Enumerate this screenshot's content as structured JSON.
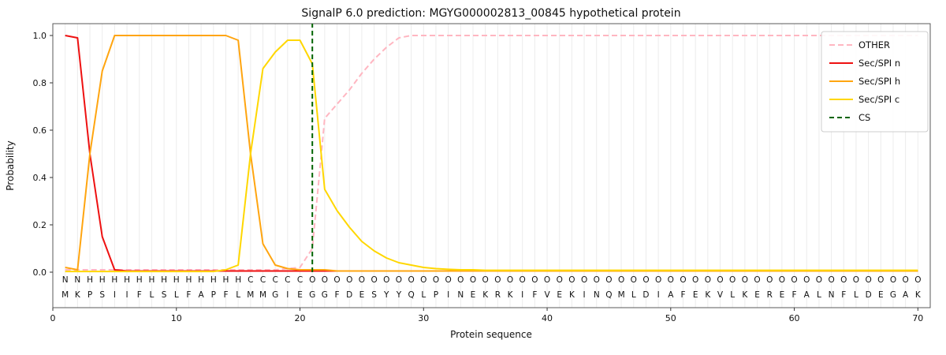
{
  "chart_data": {
    "type": "line",
    "title": "SignalP 6.0 prediction: MGYG000002813_00845 hypothetical protein",
    "xlabel": "Protein sequence",
    "ylabel": "Probability",
    "xlim": [
      0,
      71
    ],
    "ylim": [
      -0.15,
      1.05
    ],
    "xticks": [
      0,
      10,
      20,
      30,
      40,
      50,
      60,
      70
    ],
    "yticks": [
      0,
      0.2,
      0.4,
      0.6,
      0.8,
      1.0
    ],
    "ytick_labels": [
      "0.0",
      "0.2",
      "0.4",
      "0.6",
      "0.8",
      "1.0"
    ],
    "grid": "vertical line per residue",
    "legend_position": "upper right",
    "x_start": 1,
    "series": [
      {
        "name": "OTHER",
        "color": "#ffb6c1",
        "dash": "7 4",
        "values": [
          0.01,
          0.01,
          0.01,
          0.01,
          0.01,
          0.01,
          0.01,
          0.01,
          0.01,
          0.01,
          0.01,
          0.01,
          0.01,
          0.01,
          0.01,
          0.01,
          0.01,
          0.01,
          0.015,
          0.02,
          0.1,
          0.65,
          0.71,
          0.77,
          0.84,
          0.9,
          0.95,
          0.99,
          1.0,
          1.0,
          1.0,
          1.0,
          1.0,
          1.0,
          1.0,
          1.0,
          1.0,
          1.0,
          1.0,
          1.0,
          1.0,
          1.0,
          1.0,
          1.0,
          1.0,
          1.0,
          1.0,
          1.0,
          1.0,
          1.0,
          1.0,
          1.0,
          1.0,
          1.0,
          1.0,
          1.0,
          1.0,
          1.0,
          1.0,
          1.0,
          1.0,
          1.0,
          1.0,
          1.0,
          1.0,
          1.0,
          1.0,
          1.0,
          1.0,
          1.0
        ]
      },
      {
        "name": "Sec/SPI n",
        "color": "#ee1111",
        "dash": null,
        "values": [
          1.0,
          0.99,
          0.5,
          0.15,
          0.01,
          0.005,
          0.005,
          0.005,
          0.005,
          0.005,
          0.005,
          0.005,
          0.005,
          0.005,
          0.005,
          0.005,
          0.005,
          0.005,
          0.005,
          0.005,
          0.005,
          0.005,
          0.005,
          0.005,
          0.005,
          0.005,
          0.005,
          0.005,
          0.005,
          0.005,
          0.005,
          0.005,
          0.005,
          0.005,
          0.005,
          0.005,
          0.005,
          0.005,
          0.005,
          0.005,
          0.005,
          0.005,
          0.005,
          0.005,
          0.005,
          0.005,
          0.005,
          0.005,
          0.005,
          0.005,
          0.005,
          0.005,
          0.005,
          0.005,
          0.005,
          0.005,
          0.005,
          0.005,
          0.005,
          0.005,
          0.005,
          0.005,
          0.005,
          0.005,
          0.005,
          0.005,
          0.005,
          0.005,
          0.005,
          0.005
        ]
      },
      {
        "name": "Sec/SPI h",
        "color": "#ffa510",
        "dash": null,
        "values": [
          0.02,
          0.01,
          0.5,
          0.85,
          1.0,
          1.0,
          1.0,
          1.0,
          1.0,
          1.0,
          1.0,
          1.0,
          1.0,
          1.0,
          0.98,
          0.5,
          0.12,
          0.03,
          0.015,
          0.01,
          0.01,
          0.01,
          0.005,
          0.005,
          0.005,
          0.005,
          0.005,
          0.005,
          0.005,
          0.005,
          0.005,
          0.005,
          0.005,
          0.005,
          0.005,
          0.005,
          0.005,
          0.005,
          0.005,
          0.005,
          0.005,
          0.005,
          0.005,
          0.005,
          0.005,
          0.005,
          0.005,
          0.005,
          0.005,
          0.005,
          0.005,
          0.005,
          0.005,
          0.005,
          0.005,
          0.005,
          0.005,
          0.005,
          0.005,
          0.005,
          0.005,
          0.005,
          0.005,
          0.005,
          0.005,
          0.005,
          0.005,
          0.005,
          0.005,
          0.005
        ]
      },
      {
        "name": "Sec/SPI c",
        "color": "#ffd700",
        "dash": null,
        "values": [
          0.003,
          0.003,
          0.003,
          0.003,
          0.003,
          0.003,
          0.003,
          0.003,
          0.003,
          0.003,
          0.003,
          0.003,
          0.003,
          0.01,
          0.03,
          0.5,
          0.86,
          0.93,
          0.98,
          0.98,
          0.88,
          0.35,
          0.26,
          0.19,
          0.13,
          0.09,
          0.06,
          0.04,
          0.03,
          0.02,
          0.015,
          0.012,
          0.01,
          0.01,
          0.008,
          0.008,
          0.008,
          0.008,
          0.008,
          0.008,
          0.008,
          0.008,
          0.008,
          0.008,
          0.008,
          0.008,
          0.008,
          0.008,
          0.008,
          0.008,
          0.008,
          0.008,
          0.008,
          0.008,
          0.008,
          0.008,
          0.008,
          0.008,
          0.008,
          0.008,
          0.008,
          0.008,
          0.008,
          0.008,
          0.008,
          0.008,
          0.008,
          0.008,
          0.008,
          0.008
        ]
      }
    ],
    "cs": {
      "name": "CS",
      "position": 21,
      "color": "#006400",
      "dash": "6 4"
    },
    "sequence": "MKPSIIFLSLFAPFLMMGIEGGFDESYYQLPINEKRKIFVEKINQMLDIAFEKVLKEREFALNFLDEGAK",
    "regions": "NNHHHHHHHHHHHHHCCCCCOOOOOOOOOOOOOOOOOOOOOOOOOOOOOOOOOOOOOOOOOOOOOOOOOO",
    "region_colors": {
      "N": "#ee1111",
      "H": "#ffa510",
      "C": "#ffd700",
      "O": "#999999"
    },
    "sequence_color": "#2a2a2a"
  }
}
